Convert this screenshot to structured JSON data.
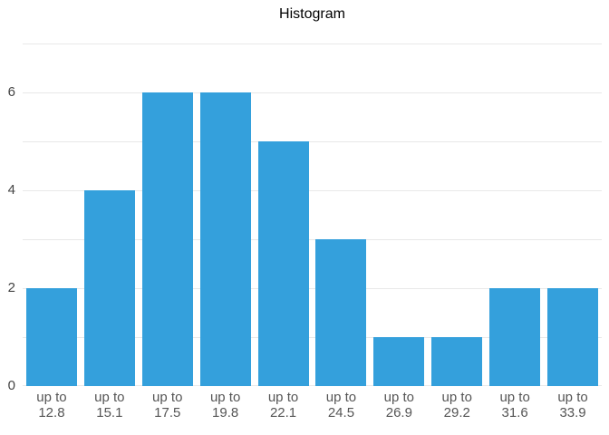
{
  "chart_data": {
    "type": "bar",
    "title": "Histogram",
    "categories": [
      "up to 12.8",
      "up to 15.1",
      "up to 17.5",
      "up to 19.8",
      "up to 22.1",
      "up to 24.5",
      "up to 26.9",
      "up to 29.2",
      "up to 31.6",
      "up to 33.9"
    ],
    "values": [
      2,
      4,
      6,
      6,
      5,
      3,
      1,
      1,
      2,
      2
    ],
    "xlabel": "",
    "ylabel": "",
    "ylim": [
      0,
      7
    ],
    "yticks": [
      0,
      2,
      4,
      6
    ],
    "grid_step": 1,
    "grid": true,
    "legend_position": "none",
    "colors": {
      "bar": "#34A0DC",
      "grid": "#e8e8e8",
      "y_tick_label": "#444444",
      "x_tick_label": "#555555",
      "title": "#000000",
      "background": "#ffffff"
    }
  }
}
